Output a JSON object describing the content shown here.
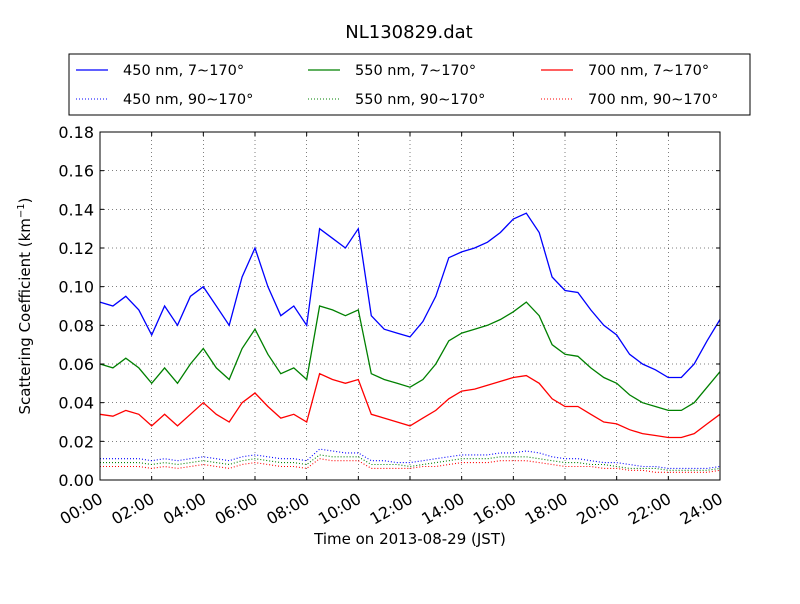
{
  "chart_data": {
    "type": "line",
    "title": "NL130829.dat",
    "xlabel": "Time on 2013-08-29 (JST)",
    "ylabel_main": "Scattering Coefficient (km",
    "ylabel_sup": "−1",
    "ylabel_end": ")",
    "xlim_hours": [
      0,
      24
    ],
    "ylim": [
      0,
      0.18
    ],
    "grid": true,
    "legend_position": "top, above plot",
    "x_ticks": [
      {
        "hour": 0,
        "label": "00:00"
      },
      {
        "hour": 2,
        "label": "02:00"
      },
      {
        "hour": 4,
        "label": "04:00"
      },
      {
        "hour": 6,
        "label": "06:00"
      },
      {
        "hour": 8,
        "label": "08:00"
      },
      {
        "hour": 10,
        "label": "10:00"
      },
      {
        "hour": 12,
        "label": "12:00"
      },
      {
        "hour": 14,
        "label": "14:00"
      },
      {
        "hour": 16,
        "label": "16:00"
      },
      {
        "hour": 18,
        "label": "18:00"
      },
      {
        "hour": 20,
        "label": "20:00"
      },
      {
        "hour": 22,
        "label": "22:00"
      },
      {
        "hour": 24,
        "label": "24:00"
      }
    ],
    "y_ticks": [
      {
        "value": 0.0,
        "label": "0.00"
      },
      {
        "value": 0.02,
        "label": "0.02"
      },
      {
        "value": 0.04,
        "label": "0.04"
      },
      {
        "value": 0.06,
        "label": "0.06"
      },
      {
        "value": 0.08,
        "label": "0.08"
      },
      {
        "value": 0.1,
        "label": "0.10"
      },
      {
        "value": 0.12,
        "label": "0.12"
      },
      {
        "value": 0.14,
        "label": "0.14"
      },
      {
        "value": 0.16,
        "label": "0.16"
      },
      {
        "value": 0.18,
        "label": "0.18"
      }
    ],
    "x_hours": [
      0,
      0.5,
      1,
      1.5,
      2,
      2.5,
      3,
      3.5,
      4,
      4.5,
      5,
      5.5,
      6,
      6.5,
      7,
      7.5,
      8,
      8.5,
      9,
      9.5,
      10,
      10.5,
      11,
      11.5,
      12,
      12.5,
      13,
      13.5,
      14,
      14.5,
      15,
      15.5,
      16,
      16.5,
      17,
      17.5,
      18,
      18.5,
      19,
      19.5,
      20,
      20.5,
      21,
      21.5,
      22,
      22.5,
      23,
      23.5,
      24
    ],
    "series": [
      {
        "name": "450 nm, 7∼170°",
        "color": "#0000ff",
        "style": "solid",
        "values": [
          0.092,
          0.09,
          0.095,
          0.088,
          0.075,
          0.09,
          0.08,
          0.095,
          0.1,
          0.09,
          0.08,
          0.105,
          0.12,
          0.1,
          0.085,
          0.09,
          0.08,
          0.13,
          0.125,
          0.12,
          0.13,
          0.085,
          0.078,
          0.076,
          0.074,
          0.082,
          0.095,
          0.115,
          0.118,
          0.12,
          0.123,
          0.128,
          0.135,
          0.138,
          0.128,
          0.105,
          0.098,
          0.097,
          0.088,
          0.08,
          0.075,
          0.065,
          0.06,
          0.057,
          0.053,
          0.053,
          0.06,
          0.072,
          0.083
        ]
      },
      {
        "name": "550 nm, 7∼170°",
        "color": "#008000",
        "style": "solid",
        "values": [
          0.06,
          0.058,
          0.063,
          0.058,
          0.05,
          0.058,
          0.05,
          0.06,
          0.068,
          0.058,
          0.052,
          0.068,
          0.078,
          0.065,
          0.055,
          0.058,
          0.052,
          0.09,
          0.088,
          0.085,
          0.088,
          0.055,
          0.052,
          0.05,
          0.048,
          0.052,
          0.06,
          0.072,
          0.076,
          0.078,
          0.08,
          0.083,
          0.087,
          0.092,
          0.085,
          0.07,
          0.065,
          0.064,
          0.058,
          0.053,
          0.05,
          0.044,
          0.04,
          0.038,
          0.036,
          0.036,
          0.04,
          0.048,
          0.056
        ]
      },
      {
        "name": "700 nm, 7∼170°",
        "color": "#ff0000",
        "style": "solid",
        "values": [
          0.034,
          0.033,
          0.036,
          0.034,
          0.028,
          0.034,
          0.028,
          0.034,
          0.04,
          0.034,
          0.03,
          0.04,
          0.045,
          0.038,
          0.032,
          0.034,
          0.03,
          0.055,
          0.052,
          0.05,
          0.052,
          0.034,
          0.032,
          0.03,
          0.028,
          0.032,
          0.036,
          0.042,
          0.046,
          0.047,
          0.049,
          0.051,
          0.053,
          0.054,
          0.05,
          0.042,
          0.038,
          0.038,
          0.034,
          0.03,
          0.029,
          0.026,
          0.024,
          0.023,
          0.022,
          0.022,
          0.024,
          0.029,
          0.034
        ]
      },
      {
        "name": "450 nm, 90∼170°",
        "color": "#0000ff",
        "style": "dotted",
        "values": [
          0.011,
          0.011,
          0.011,
          0.011,
          0.01,
          0.011,
          0.01,
          0.011,
          0.012,
          0.011,
          0.01,
          0.012,
          0.013,
          0.012,
          0.011,
          0.011,
          0.01,
          0.016,
          0.015,
          0.014,
          0.014,
          0.01,
          0.01,
          0.009,
          0.009,
          0.01,
          0.011,
          0.012,
          0.013,
          0.013,
          0.013,
          0.014,
          0.014,
          0.015,
          0.014,
          0.012,
          0.011,
          0.011,
          0.01,
          0.009,
          0.009,
          0.008,
          0.007,
          0.007,
          0.006,
          0.006,
          0.006,
          0.006,
          0.007
        ]
      },
      {
        "name": "550 nm, 90∼170°",
        "color": "#008000",
        "style": "dotted",
        "values": [
          0.009,
          0.009,
          0.009,
          0.009,
          0.008,
          0.009,
          0.008,
          0.009,
          0.01,
          0.009,
          0.008,
          0.01,
          0.011,
          0.01,
          0.009,
          0.009,
          0.008,
          0.013,
          0.012,
          0.012,
          0.012,
          0.008,
          0.008,
          0.008,
          0.007,
          0.008,
          0.009,
          0.01,
          0.011,
          0.011,
          0.011,
          0.012,
          0.012,
          0.012,
          0.011,
          0.01,
          0.009,
          0.009,
          0.008,
          0.008,
          0.007,
          0.006,
          0.006,
          0.006,
          0.005,
          0.005,
          0.005,
          0.005,
          0.006
        ]
      },
      {
        "name": "700 nm, 90∼170°",
        "color": "#ff0000",
        "style": "dotted",
        "values": [
          0.007,
          0.007,
          0.007,
          0.007,
          0.006,
          0.007,
          0.006,
          0.007,
          0.008,
          0.007,
          0.006,
          0.008,
          0.009,
          0.008,
          0.007,
          0.007,
          0.006,
          0.011,
          0.01,
          0.01,
          0.01,
          0.006,
          0.006,
          0.006,
          0.006,
          0.007,
          0.007,
          0.008,
          0.009,
          0.009,
          0.009,
          0.01,
          0.01,
          0.01,
          0.009,
          0.008,
          0.007,
          0.007,
          0.007,
          0.006,
          0.006,
          0.005,
          0.005,
          0.004,
          0.004,
          0.004,
          0.004,
          0.004,
          0.005
        ]
      }
    ]
  }
}
